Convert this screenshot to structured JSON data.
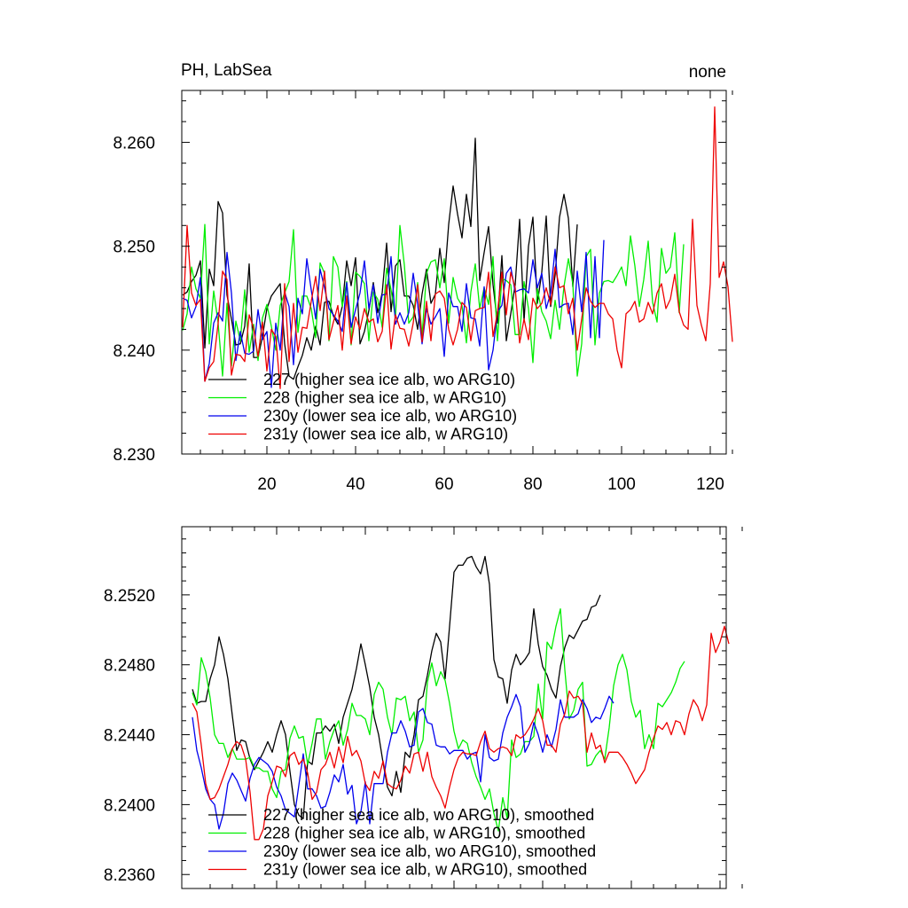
{
  "chart_data": [
    {
      "type": "line",
      "title": "PH, LabSea",
      "title_right": "none",
      "xlabel": "",
      "ylabel": "",
      "xlim": [
        1,
        126
      ],
      "ylim": [
        8.23,
        8.265
      ],
      "xticks": [
        20,
        40,
        60,
        80,
        100,
        120
      ],
      "xtick_labels": [
        "20",
        "40",
        "60",
        "80",
        "100",
        "120"
      ],
      "yticks": [
        8.23,
        8.24,
        8.25,
        8.26
      ],
      "ytick_labels": [
        "8.230",
        "8.240",
        "8.250",
        "8.260"
      ],
      "grid": false,
      "legend_position": "bottom-left",
      "series": [
        {
          "name": "227 (higher sea ice alb, wo ARG10)",
          "color": "#000000",
          "values": [
            8.2453,
            8.2456,
            8.2466,
            8.2472,
            8.2486,
            8.2402,
            8.2478,
            8.2462,
            8.2543,
            8.2532,
            8.2453,
            8.243,
            8.2405,
            8.2406,
            8.2423,
            8.2483,
            8.2393,
            8.2393,
            8.2413,
            8.244,
            8.2452,
            8.2458,
            8.2464,
            8.2406,
            8.2375,
            8.2372,
            8.2384,
            8.2395,
            8.2412,
            8.24,
            8.2423,
            8.2405,
            8.2446,
            8.2447,
            8.2433,
            8.2425,
            8.2442,
            8.2486,
            8.2462,
            8.2489,
            8.2406,
            8.2418,
            8.2438,
            8.2465,
            8.2436,
            8.2455,
            8.2503,
            8.2437,
            8.2481,
            8.2487,
            8.2452,
            8.2452,
            8.2443,
            8.242,
            8.2454,
            8.2478,
            8.2445,
            8.2454,
            8.2498,
            8.2465,
            8.2521,
            8.2558,
            8.2531,
            8.2508,
            8.255,
            8.2519,
            8.2604,
            8.2467,
            8.2494,
            8.2519,
            8.2463,
            8.2426,
            8.2491,
            8.2409,
            8.2435,
            8.2463,
            8.2526,
            8.2428,
            8.25,
            8.2528,
            8.2445,
            8.2475,
            8.2529,
            8.2442,
            8.2472,
            8.2528,
            8.255,
            8.2527,
            8.2461,
            8.2521
          ]
        },
        {
          "name": "228 (higher sea ice alb, w ARG10)",
          "color": "#00ee00",
          "values": [
            8.2419,
            8.2435,
            8.248,
            8.2459,
            8.245,
            8.2521,
            8.2406,
            8.2457,
            8.2426,
            8.2375,
            8.2445,
            8.2385,
            8.2428,
            8.2409,
            8.2458,
            8.2398,
            8.2425,
            8.239,
            8.2431,
            8.2444,
            8.2423,
            8.24,
            8.2443,
            8.2455,
            8.2466,
            8.2516,
            8.2417,
            8.2452,
            8.2452,
            8.244,
            8.2412,
            8.2484,
            8.2474,
            8.2409,
            8.249,
            8.248,
            8.2442,
            8.2466,
            8.2405,
            8.2475,
            8.2471,
            8.2464,
            8.2409,
            8.2456,
            8.2449,
            8.2422,
            8.2479,
            8.2458,
            8.2431,
            8.252,
            8.2482,
            8.2426,
            8.2432,
            8.2465,
            8.2414,
            8.2474,
            8.2485,
            8.2487,
            8.246,
            8.2488,
            8.2426,
            8.247,
            8.245,
            8.2443,
            8.2407,
            8.2456,
            8.2483,
            8.244,
            8.246,
            8.2444,
            8.249,
            8.2409,
            8.2469,
            8.2467,
            8.2463,
            8.2415,
            8.2415,
            8.2466,
            8.244,
            8.2388,
            8.2459,
            8.2437,
            8.2428,
            8.2411,
            8.2448,
            8.242,
            8.2461,
            8.2488,
            8.2464,
            8.2375,
            8.2406,
            8.249,
            8.2497,
            8.2405,
            8.2455,
            8.2466,
            8.2467,
            8.2465,
            8.2472,
            8.248,
            8.2462,
            8.251,
            8.2481,
            8.2442,
            8.2468,
            8.2505,
            8.2446,
            8.2427,
            8.2498,
            8.2474,
            8.248,
            8.2513,
            8.2436,
            8.2502
          ]
        },
        {
          "name": "230y (lower sea ice alb, wo ARG10)",
          "color": "#0000ee",
          "values": [
            8.245,
            8.2448,
            8.2431,
            8.2442,
            8.247,
            8.237,
            8.2387,
            8.2426,
            8.2436,
            8.2428,
            8.2494,
            8.2455,
            8.239,
            8.2418,
            8.2397,
            8.2396,
            8.2399,
            8.2439,
            8.241,
            8.2418,
            8.2364,
            8.2426,
            8.24,
            8.2456,
            8.2442,
            8.2386,
            8.245,
            8.2435,
            8.2488,
            8.2458,
            8.243,
            8.2478,
            8.246,
            8.244,
            8.2434,
            8.2428,
            8.2418,
            8.2465,
            8.2422,
            8.2439,
            8.2455,
            8.2486,
            8.244,
            8.2463,
            8.2426,
            8.2453,
            8.2454,
            8.249,
            8.2425,
            8.2436,
            8.2425,
            8.2436,
            8.2474,
            8.2444,
            8.2406,
            8.244,
            8.2425,
            8.2432,
            8.244,
            8.2394,
            8.2455,
            8.2442,
            8.2442,
            8.2418,
            8.2464,
            8.2431,
            8.243,
            8.2404,
            8.2461,
            8.2381,
            8.24,
            8.2437,
            8.2443,
            8.2474,
            8.248,
            8.2456,
            8.2458,
            8.2459,
            8.2455,
            8.2487,
            8.246,
            8.2474,
            8.244,
            8.2455,
            8.2497,
            8.2441,
            8.2444,
            8.2445,
            8.2415,
            8.2476,
            8.2437,
            8.2494,
            8.2412,
            8.249,
            8.2412,
            8.2506
          ]
        },
        {
          "name": "231y (lower sea ice alb, w ARG10)",
          "color": "#ee0000",
          "values": [
            8.2422,
            8.252,
            8.2455,
            8.2443,
            8.2449,
            8.237,
            8.2383,
            8.2389,
            8.2426,
            8.2476,
            8.2468,
            8.2376,
            8.2396,
            8.2395,
            8.2389,
            8.2434,
            8.2421,
            8.2394,
            8.2427,
            8.238,
            8.242,
            8.2413,
            8.2363,
            8.2464,
            8.2389,
            8.2445,
            8.2398,
            8.2422,
            8.2421,
            8.2447,
            8.2471,
            8.2438,
            8.2476,
            8.241,
            8.2427,
            8.2443,
            8.24,
            8.2452,
            8.2406,
            8.2432,
            8.242,
            8.244,
            8.2427,
            8.243,
            8.2408,
            8.2418,
            8.2463,
            8.2401,
            8.2434,
            8.2421,
            8.242,
            8.2404,
            8.2426,
            8.2463,
            8.2408,
            8.2447,
            8.2409,
            8.2454,
            8.2457,
            8.245,
            8.242,
            8.2405,
            8.242,
            8.2446,
            8.2441,
            8.2409,
            8.2438,
            8.244,
            8.2441,
            8.2475,
            8.2413,
            8.2436,
            8.2475,
            8.2434,
            8.2475,
            8.246,
            8.2407,
            8.243,
            8.241,
            8.245,
            8.244,
            8.2445,
            8.246,
            8.2444,
            8.248,
            8.246,
            8.2462,
            8.2435,
            8.245,
            8.24,
            8.243,
            8.246,
            8.2447,
            8.2441,
            8.2445,
            8.2445,
            8.2435,
            8.243,
            8.24,
            8.2383,
            8.2435,
            8.2439,
            8.2447,
            8.2427,
            8.243,
            8.2446,
            8.2435,
            8.2455,
            8.2464,
            8.244,
            8.2449,
            8.2473,
            8.2437,
            8.2424,
            8.242,
            8.2526,
            8.2443,
            8.2424,
            8.2409,
            8.2464,
            8.2634,
            8.247,
            8.2485,
            8.2461,
            8.2408
          ]
        }
      ]
    },
    {
      "type": "line",
      "title": "",
      "xlabel": "",
      "ylabel": "",
      "xlim": [
        1,
        126
      ],
      "ylim": [
        8.2352,
        8.2559
      ],
      "xticks": [
        20,
        40,
        60,
        80,
        100,
        120
      ],
      "yticks": [
        8.236,
        8.24,
        8.244,
        8.248,
        8.252
      ],
      "ytick_labels": [
        "8.2360",
        "8.2400",
        "8.2440",
        "8.2480",
        "8.2520"
      ],
      "grid": false,
      "legend_position": "bottom-left",
      "series": [
        {
          "name": "227 (higher sea ice alb, wo ARG10), smoothed",
          "color": "#000000",
          "values": [
            8.2466,
            8.2458,
            8.2459,
            8.2459,
            8.2472,
            8.248,
            8.2496,
            8.2486,
            8.2472,
            8.2451,
            8.2431,
            8.2437,
            8.2436,
            8.2426,
            8.242,
            8.2425,
            8.243,
            8.2436,
            8.243,
            8.244,
            8.2448,
            8.244,
            8.2419,
            8.24,
            8.2394,
            8.2392,
            8.2425,
            8.2423,
            8.2441,
            8.2441,
            8.2445,
            8.2442,
            8.2446,
            8.2435,
            8.245,
            8.2458,
            8.2466,
            8.2478,
            8.2492,
            8.248,
            8.2467,
            8.245,
            8.244,
            8.2424,
            8.241,
            8.2405,
            8.2419,
            8.2407,
            8.243,
            8.2427,
            8.244,
            8.246,
            8.2462,
            8.2474,
            8.2488,
            8.2498,
            8.2493,
            8.2472,
            8.2502,
            8.2533,
            8.2537,
            8.2537,
            8.2541,
            8.2542,
            8.2536,
            8.2532,
            8.2542,
            8.2526,
            8.2483,
            8.2473,
            8.2472,
            8.2458,
            8.2477,
            8.2486,
            8.248,
            8.2483,
            8.2487,
            8.2512,
            8.2492,
            8.2479,
            8.2474,
            8.2466,
            8.2461,
            8.2479,
            8.249,
            8.2497,
            8.2495,
            8.25,
            8.2505,
            8.2506,
            8.2513,
            8.2514,
            8.252
          ]
        },
        {
          "name": "228 (higher sea ice alb, w ARG10), smoothed",
          "color": "#00ee00",
          "values": [
            8.2464,
            8.2457,
            8.2484,
            8.2476,
            8.2461,
            8.244,
            8.2435,
            8.2435,
            8.2427,
            8.2432,
            8.2426,
            8.2426,
            8.2426,
            8.2427,
            8.2421,
            8.2421,
            8.2419,
            8.2419,
            8.2409,
            8.2404,
            8.2419,
            8.242,
            8.2438,
            8.2445,
            8.2438,
            8.2439,
            8.2423,
            8.2435,
            8.2449,
            8.2449,
            8.2426,
            8.2436,
            8.2443,
            8.2448,
            8.2434,
            8.2443,
            8.2458,
            8.2451,
            8.2451,
            8.2449,
            8.244,
            8.2463,
            8.247,
            8.2466,
            8.245,
            8.244,
            8.2461,
            8.246,
            8.2462,
            8.2448,
            8.2453,
            8.243,
            8.2437,
            8.247,
            8.2481,
            8.2468,
            8.2476,
            8.2471,
            8.2458,
            8.2442,
            8.2432,
            8.2437,
            8.2435,
            8.2424,
            8.2416,
            8.241,
            8.2403,
            8.2409,
            8.2395,
            8.2385,
            8.2404,
            8.2392,
            8.2437,
            8.2427,
            8.2429,
            8.2436,
            8.2436,
            8.2439,
            8.2469,
            8.2449,
            8.2493,
            8.2489,
            8.2502,
            8.2512,
            8.2477,
            8.2449,
            8.2454,
            8.2466,
            8.247,
            8.2422,
            8.2423,
            8.2428,
            8.2431,
            8.2426,
            8.2444,
            8.2468,
            8.248,
            8.2486,
            8.2477,
            8.2459,
            8.245,
            8.2454,
            8.2432,
            8.244,
            8.2432,
            8.2458,
            8.2456,
            8.246,
            8.2464,
            8.247,
            8.2478,
            8.2482
          ]
        },
        {
          "name": "230y (lower sea ice alb, wo ARG10), smoothed",
          "color": "#0000ee",
          "values": [
            8.245,
            8.2431,
            8.2421,
            8.2409,
            8.2403,
            8.24,
            8.2386,
            8.2395,
            8.2412,
            8.2418,
            8.2414,
            8.2408,
            8.2402,
            8.2415,
            8.2423,
            8.2427,
            8.2425,
            8.2423,
            8.2419,
            8.241,
            8.2405,
            8.2397,
            8.2395,
            8.2393,
            8.2411,
            8.2429,
            8.2409,
            8.2409,
            8.2405,
            8.2398,
            8.2399,
            8.2407,
            8.2417,
            8.2413,
            8.2423,
            8.2406,
            8.2411,
            8.2389,
            8.2396,
            8.2413,
            8.2389,
            8.2412,
            8.2412,
            8.2412,
            8.243,
            8.2441,
            8.2441,
            8.2448,
            8.2442,
            8.2433,
            8.2434,
            8.2453,
            8.2455,
            8.2447,
            8.2446,
            8.2434,
            8.2433,
            8.2433,
            8.2429,
            8.2431,
            8.2431,
            8.2431,
            8.2426,
            8.2429,
            8.243,
            8.2413,
            8.244,
            8.2427,
            8.2425,
            8.2426,
            8.2441,
            8.245,
            8.2456,
            8.2463,
            8.2456,
            8.243,
            8.2435,
            8.2447,
            8.244,
            8.243,
            8.244,
            8.2433,
            8.2443,
            8.246,
            8.245,
            8.245,
            8.245,
            8.2452,
            8.246,
            8.2455,
            8.2447,
            8.245,
            8.2449,
            8.2455,
            8.2462,
            8.2458
          ]
        },
        {
          "name": "231y (lower sea ice alb, w ARG10), smoothed",
          "color": "#ee0000",
          "values": [
            8.2458,
            8.2453,
            8.2434,
            8.2412,
            8.2403,
            8.2404,
            8.2409,
            8.2416,
            8.2423,
            8.2432,
            8.2436,
            8.2434,
            8.2426,
            8.2407,
            8.238,
            8.238,
            8.2386,
            8.2405,
            8.2413,
            8.2422,
            8.2421,
            8.2416,
            8.2428,
            8.243,
            8.2423,
            8.2426,
            8.2418,
            8.2403,
            8.2407,
            8.242,
            8.2423,
            8.243,
            8.2421,
            8.2433,
            8.2424,
            8.2439,
            8.2428,
            8.2431,
            8.2425,
            8.2412,
            8.2408,
            8.2419,
            8.2415,
            8.2425,
            8.2412,
            8.241,
            8.2409,
            8.2414,
            8.2422,
            8.2418,
            8.2429,
            8.243,
            8.2419,
            8.243,
            8.2416,
            8.241,
            8.2405,
            8.2398,
            8.241,
            8.242,
            8.2427,
            8.243,
            8.2429,
            8.2429,
            8.2428,
            8.2436,
            8.2442,
            8.2432,
            8.243,
            8.2432,
            8.2433,
            8.2432,
            8.2428,
            8.244,
            8.2438,
            8.244,
            8.2444,
            8.2449,
            8.2455,
            8.2448,
            8.2434,
            8.2434,
            8.243,
            8.2446,
            8.2452,
            8.2465,
            8.2461,
            8.2462,
            8.2458,
            8.243,
            8.2441,
            8.2432,
            8.2434,
            8.2424,
            8.243,
            8.243,
            8.243,
            8.2427,
            8.2423,
            8.2418,
            8.2412,
            8.2416,
            8.242,
            8.243,
            8.2438,
            8.2445,
            8.2443,
            8.2447,
            8.244,
            8.2448,
            8.2447,
            8.244,
            8.2452,
            8.246,
            8.2456,
            8.2448,
            8.2457,
            8.2498,
            8.2487,
            8.2493,
            8.2502,
            8.2492
          ]
        }
      ]
    }
  ]
}
